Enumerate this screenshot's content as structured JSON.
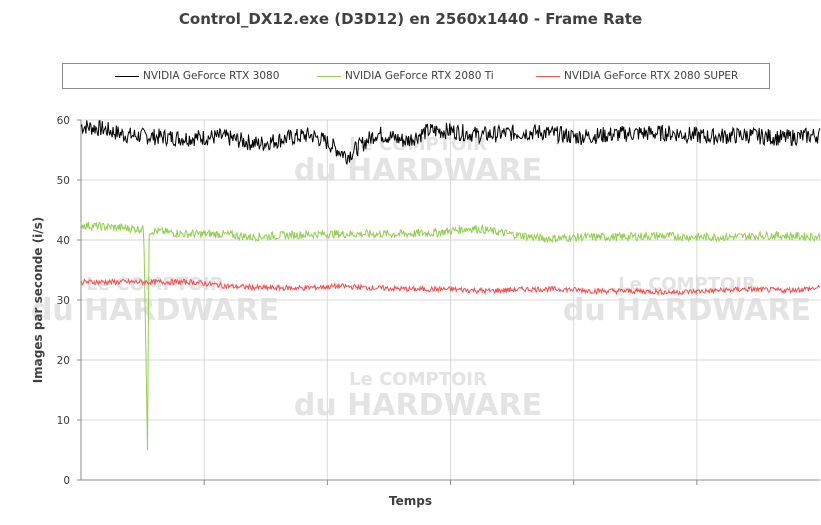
{
  "chart_data": {
    "type": "line",
    "title": "Control_DX12.exe (D3D12) en 2560x1440 - Frame Rate",
    "xlabel": "Temps",
    "ylabel": "Images par seconde (i/s)",
    "ylim": [
      0,
      60
    ],
    "yticks": [
      "0",
      "10",
      "20",
      "30",
      "40",
      "50",
      "60"
    ],
    "grid": true,
    "legend_position": "top",
    "series": [
      {
        "name": "NVIDIA GeForce RTX 3080",
        "color": "#000000",
        "x": [
          0,
          0.3,
          0.6,
          1.0,
          1.4,
          1.9,
          2.4,
          2.8,
          3.1,
          3.3,
          3.6,
          4.0,
          4.4,
          4.7,
          5.0,
          5.4,
          5.8,
          6.2,
          6.7,
          7.1,
          7.5,
          8.0,
          8.5,
          9.0,
          9.5,
          10.0
        ],
        "values": [
          59,
          58.5,
          57.5,
          57.2,
          57,
          57.2,
          56,
          57,
          57.5,
          56.5,
          54,
          57.8,
          56.5,
          58.2,
          58.2,
          57.5,
          57.8,
          58,
          57.2,
          57.5,
          57.8,
          57.8,
          57.2,
          57.5,
          57,
          57.5
        ]
      },
      {
        "name": "NVIDIA GeForce RTX 2080 Ti",
        "color": "#92d050",
        "x": [
          0,
          0.3,
          0.6,
          0.85,
          0.9,
          0.92,
          1.0,
          1.4,
          1.9,
          2.3,
          2.8,
          3.3,
          3.8,
          4.3,
          4.8,
          5.3,
          5.8,
          6.3,
          6.8,
          7.3,
          7.8,
          8.3,
          8.8,
          9.3,
          10.0
        ],
        "values": [
          42.5,
          42.2,
          42,
          41.8,
          5,
          41.5,
          41.5,
          41,
          41,
          40.5,
          40.8,
          41,
          41,
          41,
          41.2,
          42,
          41,
          40.2,
          40.5,
          40.5,
          40.7,
          40.5,
          40.5,
          40.8,
          40.5
        ]
      },
      {
        "name": "NVIDIA GeForce RTX 2080 SUPER",
        "color": "#ff4b4b",
        "x": [
          0,
          0.5,
          1.0,
          1.5,
          2.0,
          2.5,
          3.0,
          3.5,
          4.0,
          4.5,
          5.0,
          5.5,
          6.0,
          6.5,
          7.0,
          7.5,
          8.0,
          8.5,
          9.0,
          9.5,
          10.0
        ],
        "values": [
          33,
          33,
          33,
          33,
          32.3,
          32,
          32,
          32.3,
          32,
          31.8,
          31.8,
          31.5,
          31.8,
          31.8,
          31.5,
          31.5,
          31.3,
          31.5,
          31.8,
          31.6,
          32
        ]
      }
    ]
  },
  "watermark": {
    "line1": "Le COMPTOIR",
    "line2": "du HARDWARE"
  }
}
